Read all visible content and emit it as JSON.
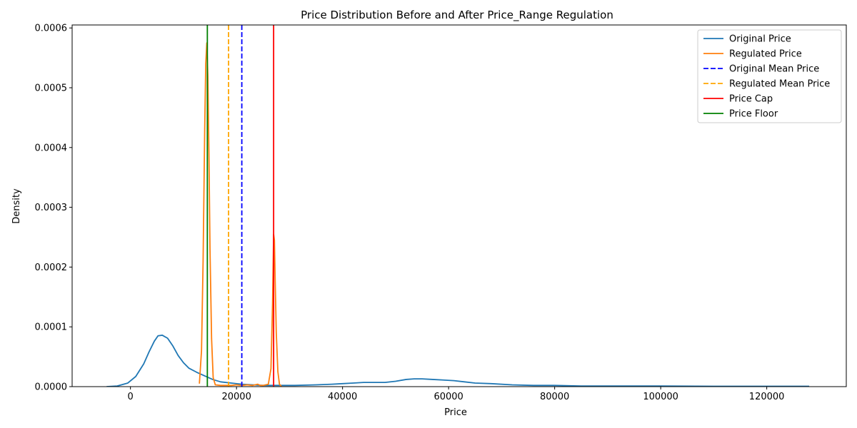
{
  "chart_data": {
    "type": "line",
    "title": "Price Distribution Before and After Price_Range Regulation",
    "xlabel": "Price",
    "ylabel": "Density",
    "xlim": [
      -11000,
      135000
    ],
    "ylim": [
      0,
      0.000605
    ],
    "xticks": [
      0,
      20000,
      40000,
      60000,
      80000,
      100000,
      120000
    ],
    "xtick_labels": [
      "0",
      "20000",
      "40000",
      "60000",
      "80000",
      "100000",
      "120000"
    ],
    "yticks": [
      0,
      0.0001,
      0.0002,
      0.0003,
      0.0004,
      0.0005,
      0.0006
    ],
    "ytick_labels": [
      "0.0000",
      "0.0001",
      "0.0002",
      "0.0003",
      "0.0004",
      "0.0005",
      "0.0006"
    ],
    "grid": false,
    "legend_position": "top-right",
    "series": [
      {
        "name": "Original Price",
        "color": "#1f77b4",
        "style": "solid",
        "x": [
          -4500,
          -2500,
          -500,
          1000,
          2500,
          3500,
          4500,
          5200,
          6000,
          7000,
          8000,
          9000,
          10000,
          11000,
          12500,
          14000,
          15500,
          17000,
          19000,
          21000,
          23000,
          25000,
          28000,
          31000,
          35000,
          38000,
          40000,
          42000,
          44000,
          46000,
          48000,
          50000,
          52000,
          53500,
          55000,
          57000,
          59000,
          61000,
          63000,
          65000,
          68000,
          72000,
          76000,
          80000,
          85000,
          90000,
          100000,
          110000,
          120000,
          128000
        ],
        "y": [
          0.0,
          1e-06,
          6e-06,
          1.7e-05,
          3.8e-05,
          5.8e-05,
          7.6e-05,
          8.5e-05,
          8.6e-05,
          8.1e-05,
          6.8e-05,
          5.2e-05,
          4e-05,
          3.1e-05,
          2.4e-05,
          1.8e-05,
          1.2e-05,
          8e-06,
          6e-06,
          4e-06,
          3e-06,
          2e-06,
          2e-06,
          2e-06,
          3e-06,
          4e-06,
          5e-06,
          6e-06,
          7e-06,
          7e-06,
          7e-06,
          9e-06,
          1.2e-05,
          1.3e-05,
          1.3e-05,
          1.2e-05,
          1.1e-05,
          1e-05,
          8e-06,
          6e-06,
          5e-06,
          3e-06,
          2e-06,
          2e-06,
          1e-06,
          1e-06,
          1e-06,
          5e-07,
          5e-07,
          5e-07
        ]
      },
      {
        "name": "Regulated Price",
        "color": "#ff7f0e",
        "style": "solid",
        "x": [
          13000,
          13400,
          13700,
          14000,
          14200,
          14400,
          14600,
          14800,
          15000,
          15300,
          15600,
          16000,
          17000,
          18000,
          19000,
          20000,
          21000,
          22000,
          23000,
          24000,
          24500,
          25000,
          26000,
          26500,
          26800,
          27000,
          27150,
          27300,
          27500,
          27800,
          28100,
          28500
        ],
        "y": [
          5e-06,
          6e-05,
          0.00021,
          0.00043,
          0.00054,
          0.000575,
          0.00052,
          0.00039,
          0.00023,
          8e-05,
          1.5e-05,
          3e-06,
          2e-06,
          2e-06,
          2e-06,
          3e-06,
          2e-06,
          3e-06,
          2e-06,
          4e-06,
          2e-06,
          2e-06,
          4e-06,
          3e-05,
          0.00014,
          0.000255,
          0.000245,
          0.000175,
          9e-05,
          2.5e-05,
          4e-06,
          0.0
        ]
      }
    ],
    "reference_lines": [
      {
        "name": "Original Mean Price",
        "x": 21000,
        "color": "#0000ff",
        "style": "dashed"
      },
      {
        "name": "Regulated Mean Price",
        "x": 18500,
        "color": "#ffa500",
        "style": "dashed"
      },
      {
        "name": "Price Cap",
        "x": 27000,
        "color": "#ff0000",
        "style": "solid"
      },
      {
        "name": "Price Floor",
        "x": 14500,
        "color": "#008000",
        "style": "solid"
      }
    ],
    "legend": [
      {
        "label": "Original Price",
        "color": "#1f77b4",
        "style": "solid"
      },
      {
        "label": "Regulated Price",
        "color": "#ff7f0e",
        "style": "solid"
      },
      {
        "label": "Original Mean Price",
        "color": "#0000ff",
        "style": "dashed"
      },
      {
        "label": "Regulated Mean Price",
        "color": "#ffa500",
        "style": "dashed"
      },
      {
        "label": "Price Cap",
        "color": "#ff0000",
        "style": "solid"
      },
      {
        "label": "Price Floor",
        "color": "#008000",
        "style": "solid"
      }
    ]
  }
}
